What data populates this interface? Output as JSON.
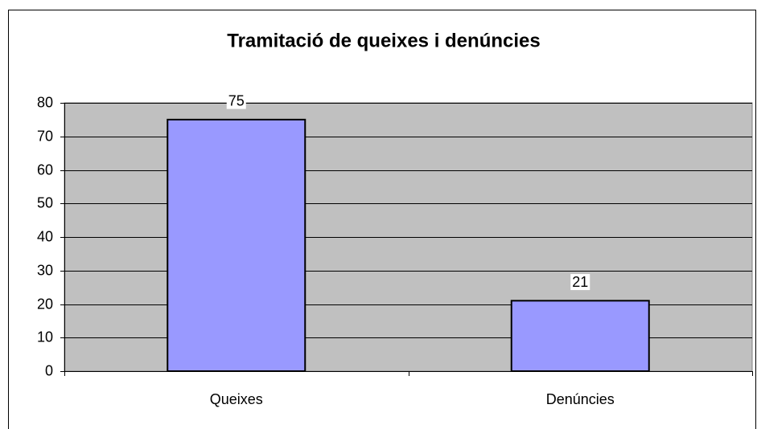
{
  "chart_data": {
    "type": "bar",
    "title": "Tramitació de queixes i denúncies",
    "categories": [
      "Queixes",
      "Denúncies"
    ],
    "values": [
      75,
      21
    ],
    "color": "#9999ff",
    "ylim": [
      0,
      80
    ],
    "yticks": [
      0,
      10,
      20,
      30,
      40,
      50,
      60,
      70,
      80
    ],
    "grid": true
  }
}
